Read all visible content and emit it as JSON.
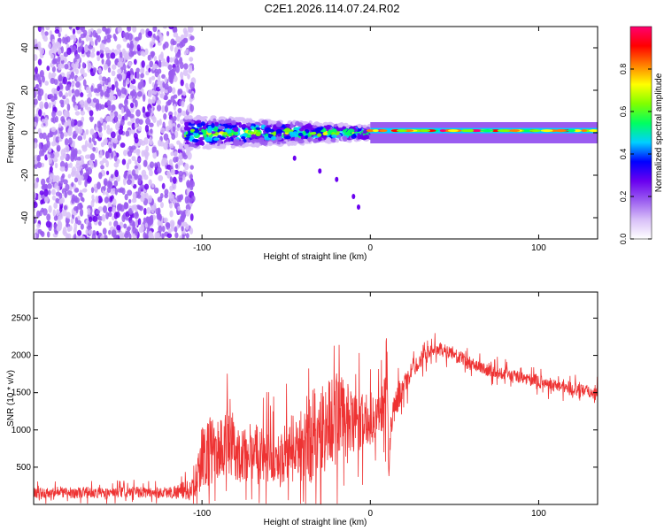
{
  "title": "C2E1.2026.114.07.24.R02",
  "chart_data": [
    {
      "type": "heatmap",
      "xlabel": "Height of straight line (km)",
      "ylabel": "Frequency (Hz)",
      "xlim": [
        -200,
        135
      ],
      "ylim": [
        -50,
        50
      ],
      "xticks": [
        -100,
        0,
        100
      ],
      "yticks": [
        -40,
        -20,
        0,
        20,
        40
      ],
      "colorbar": {
        "label": "Normalized spectral amplitude",
        "range": [
          0,
          1
        ],
        "ticks": [
          "0.0",
          "0.2",
          "0.4",
          "0.6",
          "0.8"
        ],
        "colors": [
          "#ffffff",
          "#d8bff8",
          "#9a5cf0",
          "#6a00f0",
          "#0000ff",
          "#00d0ff",
          "#00ff60",
          "#80ff00",
          "#ffff00",
          "#ff8000",
          "#ff0000",
          "#ff0070"
        ]
      },
      "regions": [
        {
          "x": [
            -200,
            -105
          ],
          "description_value": 0.25,
          "freq_spread": [
            -50,
            50
          ]
        },
        {
          "x": [
            -110,
            0
          ],
          "center_freq": 0,
          "freq_spread": [
            -8,
            8
          ],
          "peak_value": 0.5
        },
        {
          "x": [
            0,
            135
          ],
          "center_freq": 1,
          "freq_spread": [
            -3,
            3
          ],
          "peak_value": 0.95
        }
      ],
      "faint_trail": [
        [
          -45,
          -12
        ],
        [
          -30,
          -18
        ],
        [
          -20,
          -22
        ],
        [
          -10,
          -30
        ],
        [
          -7,
          -35
        ]
      ]
    },
    {
      "type": "line",
      "xlabel": "Height of straight line (km)",
      "ylabel": "SNR (10 * v/v)",
      "xlim": [
        -200,
        135
      ],
      "ylim": [
        0,
        2850
      ],
      "xticks": [
        -100,
        0,
        100
      ],
      "yticks": [
        500,
        1000,
        1500,
        2000,
        2500
      ],
      "series": [
        {
          "name": "SNR",
          "color": "#ee3333",
          "x": [
            -200,
            -180,
            -160,
            -140,
            -120,
            -105,
            -100,
            -95,
            -90,
            -85,
            -80,
            -75,
            -70,
            -65,
            -60,
            -55,
            -50,
            -45,
            -40,
            -35,
            -30,
            -25,
            -20,
            -15,
            -10,
            -5,
            0,
            5,
            8,
            10,
            11,
            12,
            15,
            20,
            25,
            30,
            35,
            40,
            45,
            50,
            60,
            70,
            80,
            90,
            100,
            110,
            120,
            130,
            135
          ],
          "values": [
            150,
            160,
            150,
            165,
            160,
            200,
            650,
            700,
            750,
            800,
            700,
            650,
            750,
            700,
            650,
            600,
            700,
            750,
            800,
            900,
            1000,
            1100,
            1200,
            1150,
            1050,
            1100,
            1150,
            1200,
            1300,
            2000,
            350,
            1100,
            1350,
            1600,
            1800,
            1950,
            2050,
            2100,
            2050,
            2000,
            1900,
            1800,
            1750,
            1700,
            1650,
            1600,
            1550,
            1500,
            1520
          ],
          "noise_amplitude": [
            120,
            120,
            120,
            120,
            130,
            250,
            650,
            800,
            700,
            800,
            650,
            600,
            650,
            600,
            600,
            550,
            650,
            700,
            900,
            1100,
            1100,
            1000,
            1100,
            900,
            700,
            600,
            600,
            500,
            700,
            800,
            10,
            400,
            300,
            250,
            200,
            180,
            150,
            150,
            150,
            150,
            140,
            140,
            140,
            140,
            150,
            150,
            150,
            150,
            150
          ]
        }
      ]
    }
  ]
}
